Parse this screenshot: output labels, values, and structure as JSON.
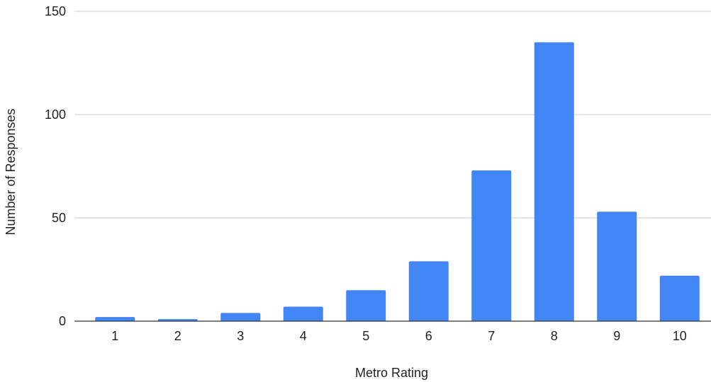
{
  "chart_data": {
    "type": "bar",
    "title": "",
    "xlabel": "Metro Rating",
    "ylabel": "Number of Responses",
    "categories": [
      "1",
      "2",
      "3",
      "4",
      "5",
      "6",
      "7",
      "8",
      "9",
      "10"
    ],
    "values": [
      2,
      1,
      4,
      7,
      15,
      29,
      73,
      135,
      53,
      22
    ],
    "ylim": [
      0,
      150
    ],
    "yticks": [
      "0",
      "50",
      "100",
      "150"
    ],
    "grid": true,
    "legend": "none",
    "colors": {
      "bar": "#4285f4",
      "grid": "#cccccc",
      "axis": "#333333",
      "text": "#222222"
    }
  }
}
